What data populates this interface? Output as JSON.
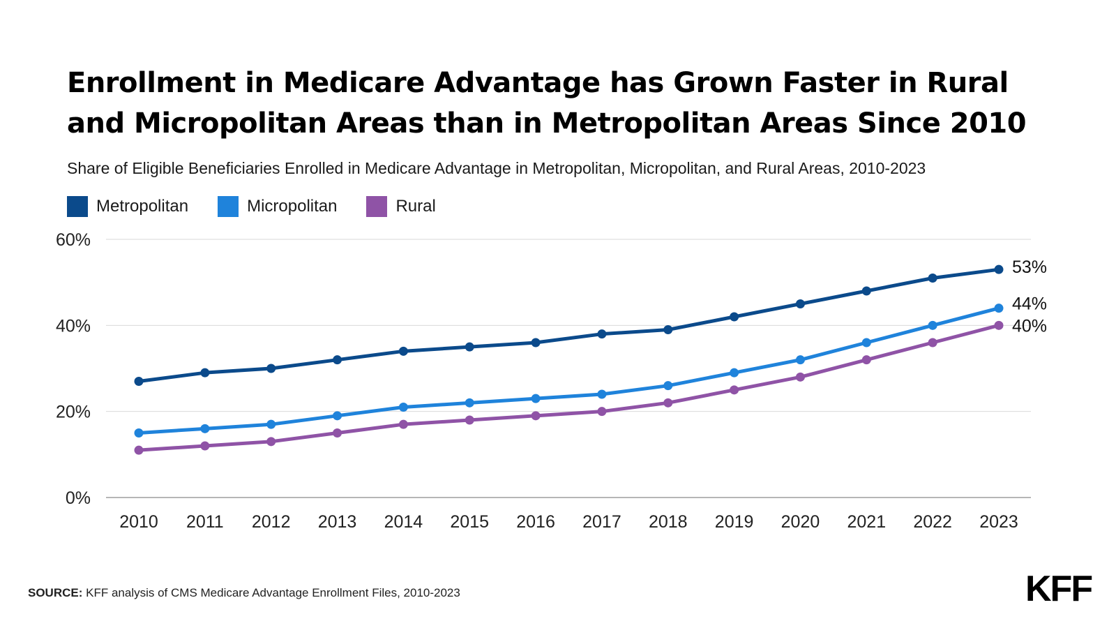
{
  "header": {
    "title": "Enrollment in Medicare Advantage has Grown Faster in Rural and Micropolitan Areas than in Metropolitan Areas Since 2010",
    "subtitle": "Share of Eligible Beneficiaries Enrolled in Medicare Advantage in Metropolitan, Micropolitan, and Rural Areas, 2010-2023"
  },
  "footer": {
    "source_label": "SOURCE:",
    "source_text": " KFF analysis of CMS Medicare Advantage Enrollment Files, 2010-2023",
    "logo_text": "KFF"
  },
  "colors": {
    "metropolitan": "#0b4a8b",
    "micropolitan": "#1f83db",
    "rural": "#8f53a6",
    "gridline": "#d9d9d9",
    "baseline": "#9e9e9e"
  },
  "chart_data": {
    "type": "line",
    "x": [
      "2010",
      "2011",
      "2012",
      "2013",
      "2014",
      "2015",
      "2016",
      "2017",
      "2018",
      "2019",
      "2020",
      "2021",
      "2022",
      "2023"
    ],
    "ylim": [
      0,
      60
    ],
    "yticks": [
      0,
      20,
      40,
      60
    ],
    "ytick_labels": [
      "0%",
      "20%",
      "40%",
      "60%"
    ],
    "grid": true,
    "legend_position": "top-left",
    "series": [
      {
        "name": "Metropolitan",
        "key": "metropolitan",
        "values": [
          27,
          29,
          30,
          32,
          34,
          35,
          36,
          38,
          39,
          42,
          45,
          48,
          51,
          53
        ],
        "end_label": "53%"
      },
      {
        "name": "Micropolitan",
        "key": "micropolitan",
        "values": [
          15,
          16,
          17,
          19,
          21,
          22,
          23,
          24,
          26,
          29,
          32,
          36,
          40,
          44
        ],
        "end_label": "44%"
      },
      {
        "name": "Rural",
        "key": "rural",
        "values": [
          11,
          12,
          13,
          15,
          17,
          18,
          19,
          20,
          22,
          25,
          28,
          32,
          36,
          40
        ],
        "end_label": "40%"
      }
    ]
  }
}
